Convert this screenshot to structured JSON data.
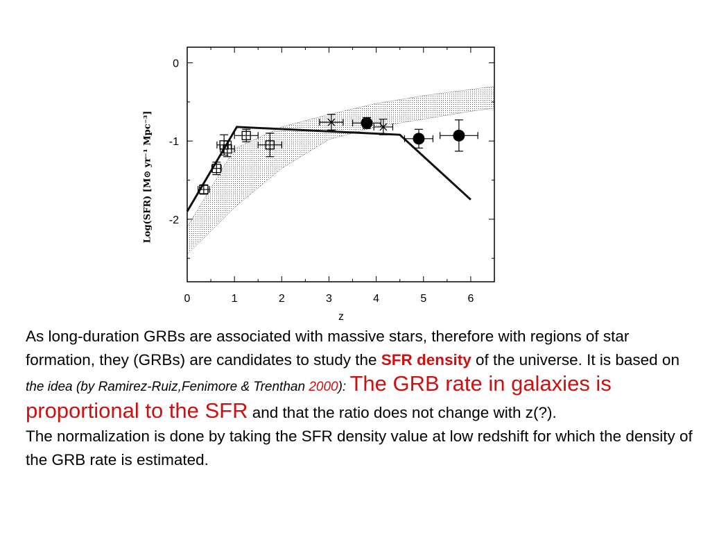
{
  "chart_data": {
    "type": "scatter",
    "xlabel": "z",
    "ylabel": "Log(SFR) [M⊙ yr⁻¹ Mpc⁻³]",
    "xlim": [
      0,
      6.5
    ],
    "ylim": [
      -2.8,
      0.2
    ],
    "xticks": [
      "0",
      "1",
      "2",
      "3",
      "4",
      "5",
      "6"
    ],
    "yticks": [
      "0",
      "-1",
      "-2"
    ],
    "model_line": {
      "x": [
        0,
        1.05,
        4.5,
        6.0
      ],
      "y": [
        -1.9,
        -0.82,
        -0.92,
        -1.75
      ]
    },
    "shaded_band": {
      "x": [
        0,
        1,
        2,
        3,
        4,
        5,
        6,
        6.5
      ],
      "lower": [
        -2.45,
        -1.85,
        -1.35,
        -0.98,
        -0.82,
        -0.72,
        -0.62,
        -0.58
      ],
      "upper": [
        -2.1,
        -1.1,
        -0.82,
        -0.66,
        -0.52,
        -0.42,
        -0.34,
        -0.3
      ]
    },
    "series": [
      {
        "marker": "open-square",
        "points": [
          {
            "x": 0.35,
            "y": -1.62,
            "xerr": 0.12,
            "yerr": 0.06
          },
          {
            "x": 0.62,
            "y": -1.35,
            "xerr": 0.1,
            "yerr": 0.08
          },
          {
            "x": 0.78,
            "y": -1.05,
            "xerr": 0.15,
            "yerr": 0.13
          },
          {
            "x": 0.85,
            "y": -1.1,
            "xerr": 0.15,
            "yerr": 0.1
          },
          {
            "x": 1.25,
            "y": -0.93,
            "xerr": 0.25,
            "yerr": 0.08
          },
          {
            "x": 1.75,
            "y": -1.05,
            "xerr": 0.25,
            "yerr": 0.15
          }
        ]
      },
      {
        "marker": "cross",
        "points": [
          {
            "x": 3.05,
            "y": -0.76,
            "xerr": 0.25,
            "yerr": 0.1
          },
          {
            "x": 4.15,
            "y": -0.82,
            "xerr": 0.2,
            "yerr": 0.1
          }
        ]
      },
      {
        "marker": "filled-circle",
        "points": [
          {
            "x": 3.8,
            "y": -0.77,
            "xerr": 0.3,
            "yerr": 0.07
          },
          {
            "x": 4.9,
            "y": -0.97,
            "xerr": 0.3,
            "yerr": 0.12
          },
          {
            "x": 5.75,
            "y": -0.93,
            "xerr": 0.4,
            "yerr": 0.2
          }
        ]
      }
    ]
  },
  "text": {
    "p1_a": "As long-duration GRBs are associated with massive stars, therefore with regions of star formation, they (GRBs) are candidates to study the ",
    "p1_b": "SFR density",
    "p1_c": " of the universe.  It is based on ",
    "p1_d": "the idea (by Ramirez-Ruiz,Fenimore & Trenthan ",
    "p1_e": "2000",
    "p1_f": "): ",
    "p1_g": "The GRB rate in galaxies is proportional to the SFR",
    "p1_h": " and that the ratio does not change with z(?).",
    "p2": "The normalization is done by taking the SFR density value at low redshift for which the density of the GRB rate is estimated."
  }
}
